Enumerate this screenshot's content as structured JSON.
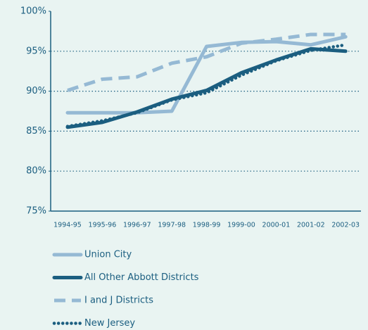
{
  "chart_data": {
    "type": "line",
    "categories": [
      "1994-95",
      "1995-96",
      "1996-97",
      "1997-98",
      "1998-99",
      "1999-00",
      "2000-01",
      "2001-02",
      "2002-03"
    ],
    "series": [
      {
        "name": "Union City",
        "color": "#95b9d4",
        "style": "solid",
        "values": [
          87.3,
          87.3,
          87.3,
          87.5,
          95.6,
          96.1,
          96.2,
          95.8,
          96.8
        ]
      },
      {
        "name": "All Other Abbott Districts",
        "color": "#1b5e80",
        "style": "solid",
        "values": [
          85.5,
          86.1,
          87.4,
          89.0,
          90.1,
          92.3,
          93.9,
          95.3,
          95.0
        ]
      },
      {
        "name": "I and J Districts",
        "color": "#95b9d4",
        "style": "dashed",
        "values": [
          90.1,
          91.5,
          91.8,
          93.5,
          94.3,
          96.0,
          96.5,
          97.1,
          97.1
        ]
      },
      {
        "name": "New Jersey",
        "color": "#1b5e80",
        "style": "dotted",
        "values": [
          85.6,
          86.3,
          87.3,
          88.9,
          89.8,
          92.0,
          93.8,
          95.1,
          95.8
        ]
      }
    ],
    "ylim": [
      75,
      100
    ],
    "yticks": [
      {
        "value": 75,
        "label": "75%"
      },
      {
        "value": 80,
        "label": "80%"
      },
      {
        "value": 85,
        "label": "85%"
      },
      {
        "value": 90,
        "label": "90%"
      },
      {
        "value": 95,
        "label": "95%"
      },
      {
        "value": 100,
        "label": "100%"
      }
    ],
    "grid": true
  }
}
